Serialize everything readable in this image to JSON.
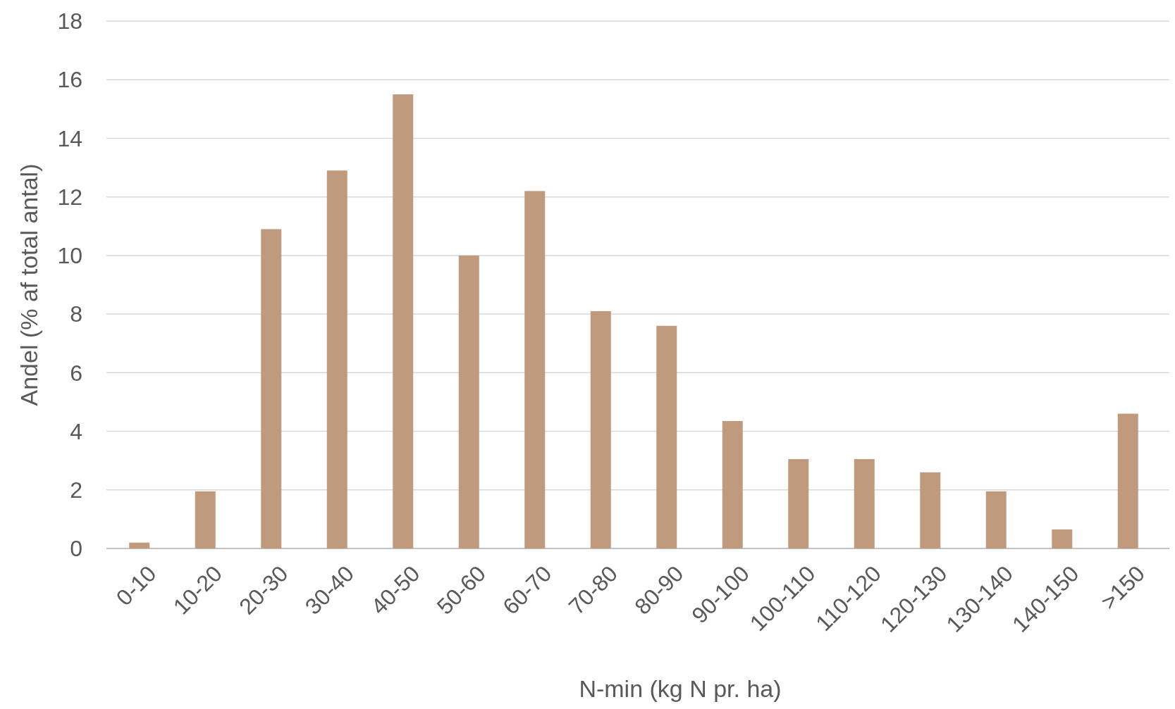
{
  "chart_data": {
    "type": "bar",
    "xlabel": "N-min (kg N pr. ha)",
    "ylabel": "Andel (% af total antal)",
    "categories": [
      "0-10",
      "10-20",
      "20-30",
      "30-40",
      "40-50",
      "50-60",
      "60-70",
      "70-80",
      "80-90",
      "90-100",
      "100-110",
      "110-120",
      "120-130",
      "130-140",
      "140-150",
      ">150"
    ],
    "values": [
      0.2,
      1.95,
      10.9,
      12.9,
      15.5,
      10.0,
      12.2,
      8.1,
      7.6,
      4.35,
      3.05,
      3.05,
      2.6,
      1.95,
      0.65,
      4.6
    ],
    "color": "#c09a7d",
    "ylim": [
      0,
      18
    ],
    "yticks": [
      0,
      2,
      4,
      6,
      8,
      10,
      12,
      14,
      16,
      18
    ],
    "grid": "y"
  }
}
